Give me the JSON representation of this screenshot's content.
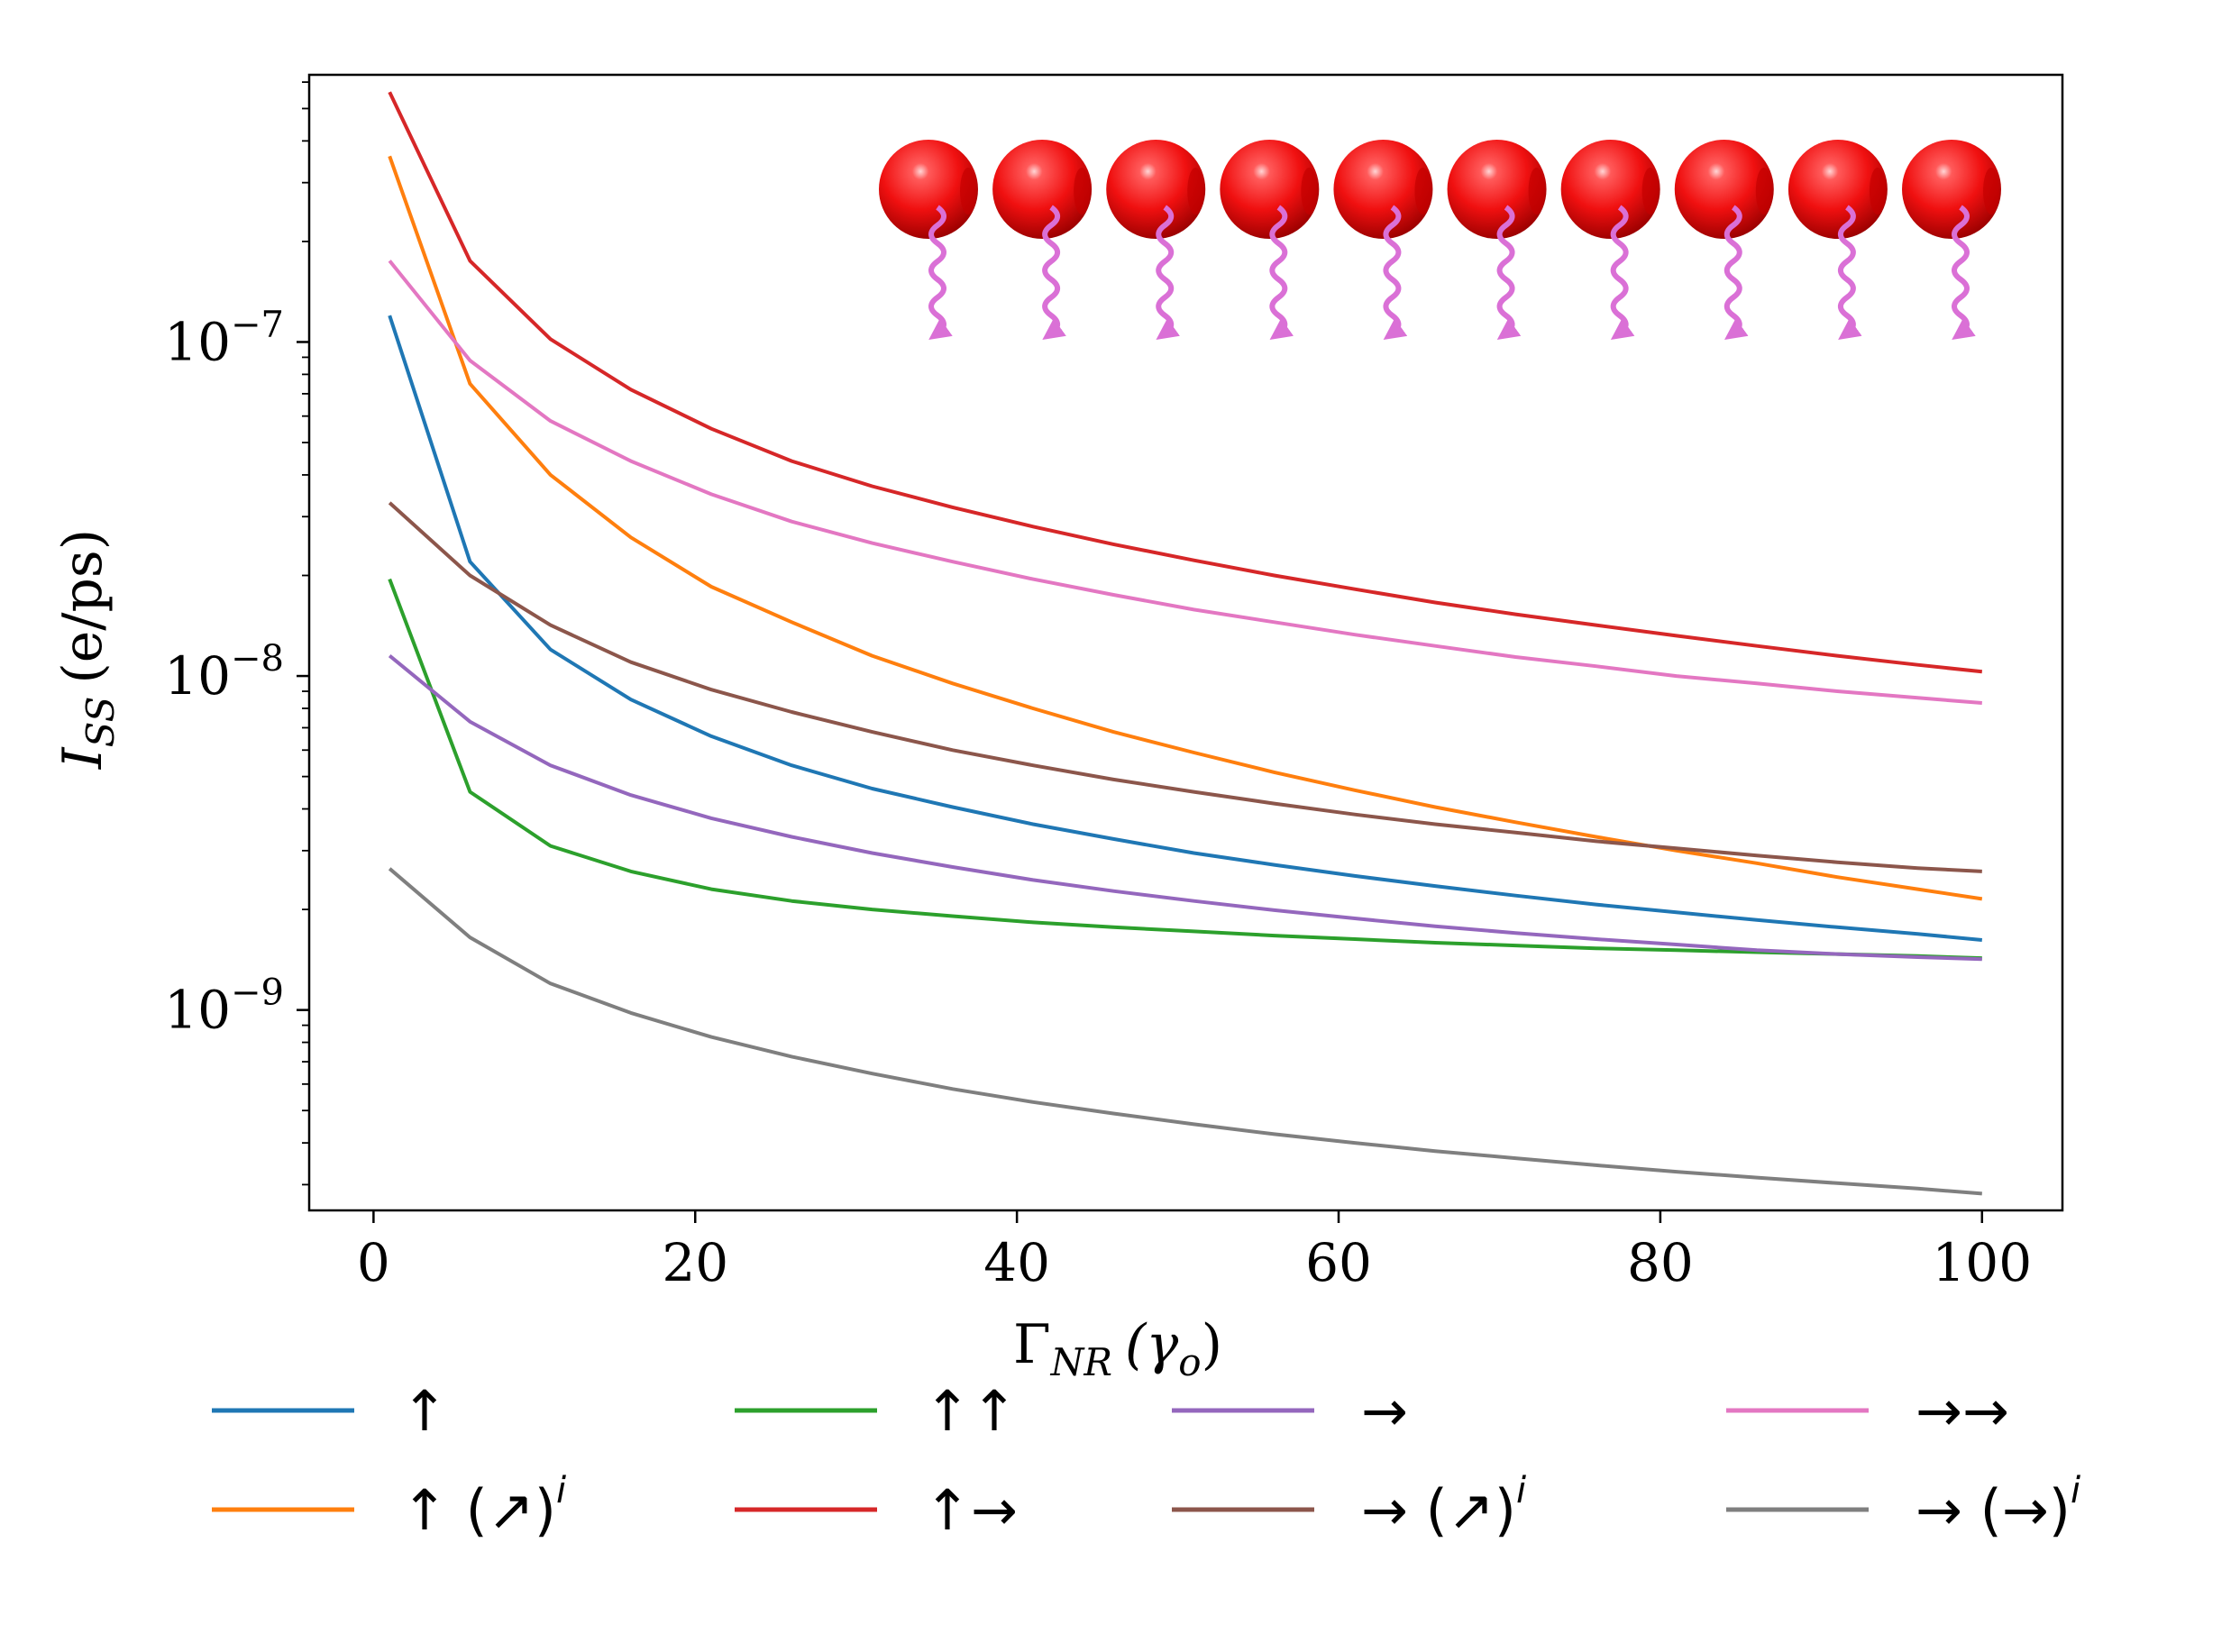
{
  "chart_data": {
    "type": "line",
    "title": "",
    "xlabel_main": "Γ",
    "xlabel_sub": "NR",
    "xlabel_unit": "(γ",
    "xlabel_unit_sub": "o",
    "xlabel_unit_close": ")",
    "ylabel_main": "I",
    "ylabel_sub": "SS",
    "ylabel_unit": "(e/ps)",
    "xlim": [
      -4,
      105
    ],
    "ylim_log10": [
      -9.6,
      -6.2
    ],
    "yscale": "log",
    "x_ticks": [
      {
        "value": 0,
        "label": "0"
      },
      {
        "value": 20,
        "label": "20"
      },
      {
        "value": 40,
        "label": "40"
      },
      {
        "value": 60,
        "label": "60"
      },
      {
        "value": 80,
        "label": "80"
      },
      {
        "value": 100,
        "label": "100"
      }
    ],
    "y_ticks": [
      {
        "exp": -7,
        "base": "10",
        "sup": "−7"
      },
      {
        "exp": -8,
        "base": "10",
        "sup": "−8"
      },
      {
        "exp": -9,
        "base": "10",
        "sup": "−9"
      }
    ],
    "legend_position": "below",
    "x": [
      1,
      6,
      11,
      16,
      21,
      26,
      31,
      36,
      41,
      46,
      51,
      56,
      61,
      66,
      71,
      76,
      81,
      86,
      91,
      96,
      100
    ],
    "series": [
      {
        "name": "↑",
        "sup": "",
        "color": "#1f77b4",
        "values": [
          1.2e-07,
          2.2e-08,
          1.2e-08,
          8.5e-09,
          6.6e-09,
          5.4e-09,
          4.6e-09,
          4.05e-09,
          3.6e-09,
          3.25e-09,
          2.95e-09,
          2.72e-09,
          2.52e-09,
          2.35e-09,
          2.2e-09,
          2.07e-09,
          1.96e-09,
          1.86e-09,
          1.77e-09,
          1.69e-09,
          1.62e-09
        ]
      },
      {
        "name": "↑ (↗)",
        "sup": "i",
        "color": "#ff7f0e",
        "values": [
          3.6e-07,
          7.5e-08,
          4e-08,
          2.6e-08,
          1.85e-08,
          1.45e-08,
          1.15e-08,
          9.5e-09,
          8e-09,
          6.8e-09,
          5.9e-09,
          5.15e-09,
          4.55e-09,
          4.05e-09,
          3.65e-09,
          3.3e-09,
          3e-09,
          2.75e-09,
          2.5e-09,
          2.3e-09,
          2.15e-09
        ]
      },
      {
        "name": "↑↑",
        "sup": "",
        "color": "#2ca02c",
        "values": [
          1.95e-08,
          4.5e-09,
          3.1e-09,
          2.6e-09,
          2.3e-09,
          2.12e-09,
          2e-09,
          1.91e-09,
          1.83e-09,
          1.77e-09,
          1.72e-09,
          1.67e-09,
          1.63e-09,
          1.59e-09,
          1.56e-09,
          1.53e-09,
          1.51e-09,
          1.49e-09,
          1.47e-09,
          1.45e-09,
          1.43e-09
        ]
      },
      {
        "name": "↑→",
        "sup": "",
        "color": "#d62728",
        "values": [
          5.6e-07,
          1.75e-07,
          1.02e-07,
          7.2e-08,
          5.5e-08,
          4.4e-08,
          3.7e-08,
          3.2e-08,
          2.8e-08,
          2.48e-08,
          2.22e-08,
          2e-08,
          1.82e-08,
          1.66e-08,
          1.53e-08,
          1.42e-08,
          1.32e-08,
          1.23e-08,
          1.15e-08,
          1.08e-08,
          1.03e-08
        ]
      },
      {
        "name": "→",
        "sup": "",
        "color": "#9467bd",
        "values": [
          1.15e-08,
          7.3e-09,
          5.4e-09,
          4.4e-09,
          3.75e-09,
          3.3e-09,
          2.95e-09,
          2.68e-09,
          2.45e-09,
          2.27e-09,
          2.12e-09,
          1.99e-09,
          1.88e-09,
          1.78e-09,
          1.7e-09,
          1.63e-09,
          1.57e-09,
          1.51e-09,
          1.47e-09,
          1.44e-09,
          1.42e-09
        ]
      },
      {
        "name": "→ (↗)",
        "sup": "i",
        "color": "#8c564b",
        "values": [
          3.3e-08,
          2e-08,
          1.42e-08,
          1.1e-08,
          9.1e-09,
          7.8e-09,
          6.8e-09,
          6e-09,
          5.4e-09,
          4.9e-09,
          4.5e-09,
          4.15e-09,
          3.85e-09,
          3.6e-09,
          3.4e-09,
          3.2e-09,
          3.05e-09,
          2.9e-09,
          2.77e-09,
          2.66e-09,
          2.6e-09
        ]
      },
      {
        "name": "→→",
        "sup": "",
        "color": "#e377c2",
        "values": [
          1.75e-07,
          8.8e-08,
          5.8e-08,
          4.4e-08,
          3.5e-08,
          2.9e-08,
          2.5e-08,
          2.2e-08,
          1.95e-08,
          1.75e-08,
          1.58e-08,
          1.45e-08,
          1.33e-08,
          1.23e-08,
          1.14e-08,
          1.07e-08,
          1e-08,
          9.5e-09,
          9e-09,
          8.6e-09,
          8.3e-09
        ]
      },
      {
        "name": "→ (→)",
        "sup": "i",
        "color": "#7f7f7f",
        "values": [
          2.65e-09,
          1.65e-09,
          1.2e-09,
          9.8e-10,
          8.3e-10,
          7.25e-10,
          6.45e-10,
          5.8e-10,
          5.3e-10,
          4.9e-10,
          4.55e-10,
          4.25e-10,
          4e-10,
          3.78e-10,
          3.6e-10,
          3.43e-10,
          3.28e-10,
          3.15e-10,
          3.03e-10,
          2.92e-10,
          2.82e-10
        ]
      }
    ],
    "legend_order": [
      0,
      2,
      4,
      6,
      1,
      3,
      5,
      7
    ],
    "inset": {
      "spheres": 10,
      "sphere_color": "#ff1f1f",
      "arrow_color": "#da70d6"
    }
  }
}
